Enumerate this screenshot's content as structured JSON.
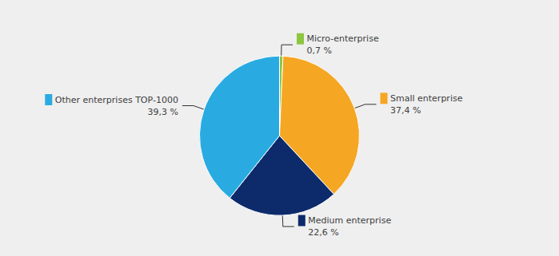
{
  "chart_data": {
    "type": "pie",
    "categories": [
      "Micro-enterprise",
      "Small enterprise",
      "Medium enterprise",
      "Other enterprises TOP-1000"
    ],
    "values": [
      0.7,
      37.4,
      22.6,
      39.3
    ],
    "value_labels": [
      "0,7 %",
      "37,4 %",
      "22,6 %",
      "39,3 %"
    ],
    "data_labels": true,
    "colors": [
      "#8dc63f",
      "#f5a623",
      "#0d2b6b",
      "#29abe2"
    ]
  }
}
